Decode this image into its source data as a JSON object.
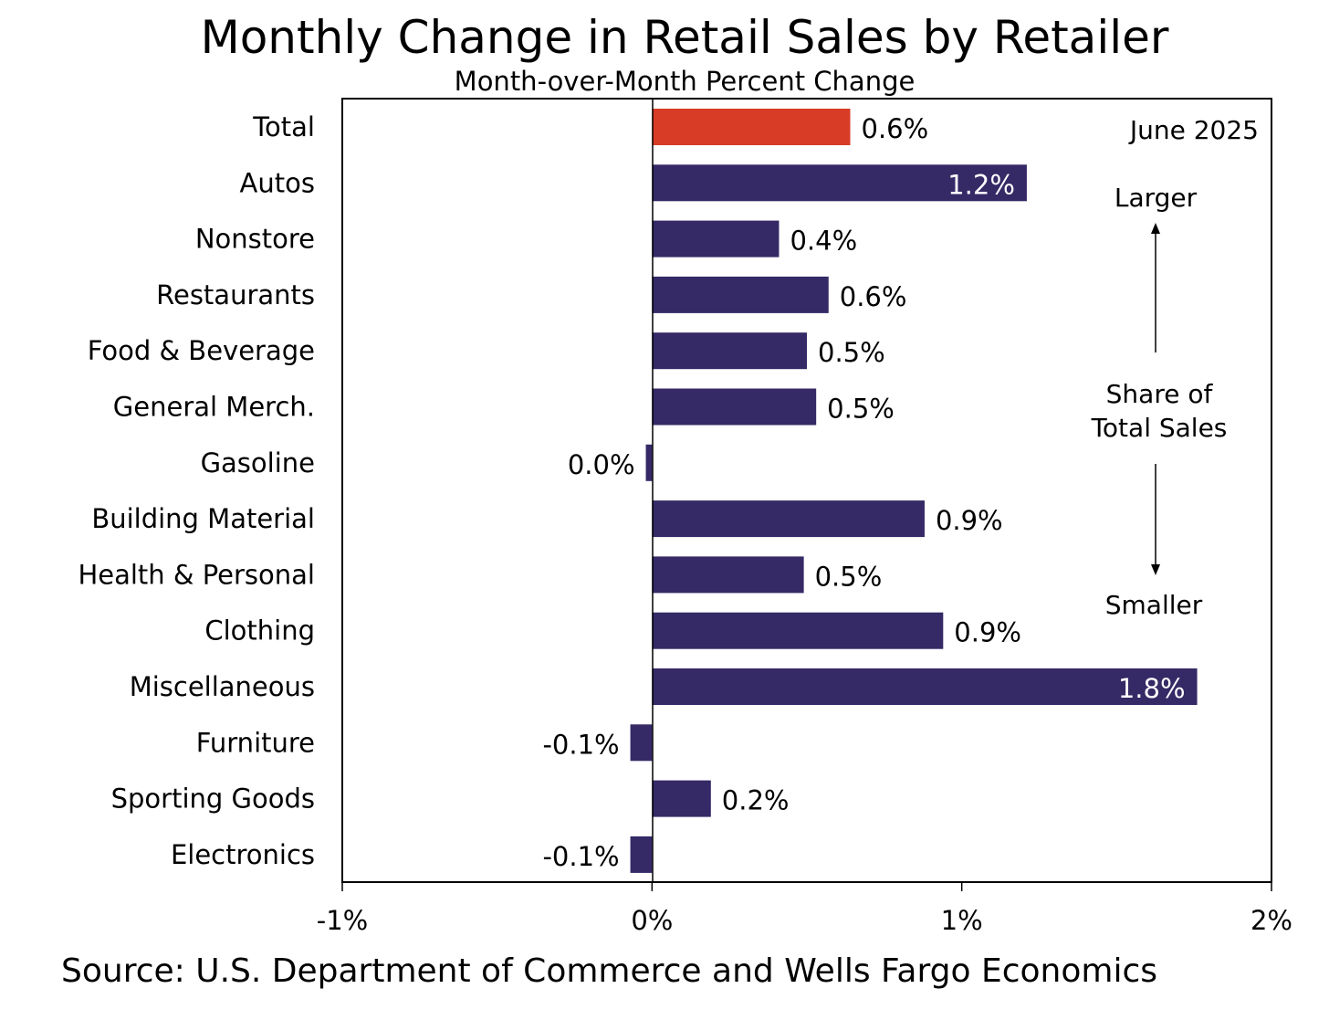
{
  "chart_data": {
    "type": "bar",
    "orientation": "horizontal",
    "title": "Monthly Change in Retail Sales by Retailer",
    "subtitle": "Month-over-Month Percent Change",
    "categories": [
      "Total",
      "Autos",
      "Nonstore",
      "Restaurants",
      "Food & Beverage",
      "General Merch.",
      "Gasoline",
      "Building Material",
      "Health & Personal",
      "Clothing",
      "Miscellaneous",
      "Furniture",
      "Sporting Goods",
      "Electronics"
    ],
    "values": [
      0.64,
      1.21,
      0.41,
      0.57,
      0.5,
      0.53,
      -0.02,
      0.88,
      0.49,
      0.94,
      1.76,
      -0.07,
      0.19,
      -0.07
    ],
    "value_labels": [
      "0.6%",
      "1.2%",
      "0.4%",
      "0.6%",
      "0.5%",
      "0.5%",
      "0.0%",
      "0.9%",
      "0.5%",
      "0.9%",
      "1.8%",
      "-0.1%",
      "0.2%",
      "-0.1%"
    ],
    "bar_colors": [
      "#d83c26",
      "#352966",
      "#352966",
      "#352966",
      "#352966",
      "#352966",
      "#352966",
      "#352966",
      "#352966",
      "#352966",
      "#352966",
      "#352966",
      "#352966",
      "#352966"
    ],
    "x_ticks": [
      -1,
      0,
      1,
      2
    ],
    "x_tick_labels": [
      "-1%",
      "0%",
      "1%",
      "2%"
    ],
    "xlim": [
      -1,
      2
    ],
    "grid": false,
    "annotations": {
      "date": "June 2025",
      "larger": "Larger",
      "share_line1": "Share of",
      "share_line2": "Total Sales",
      "smaller": "Smaller"
    }
  },
  "source": "Source: U.S. Department of Commerce and Wells Fargo Economics"
}
